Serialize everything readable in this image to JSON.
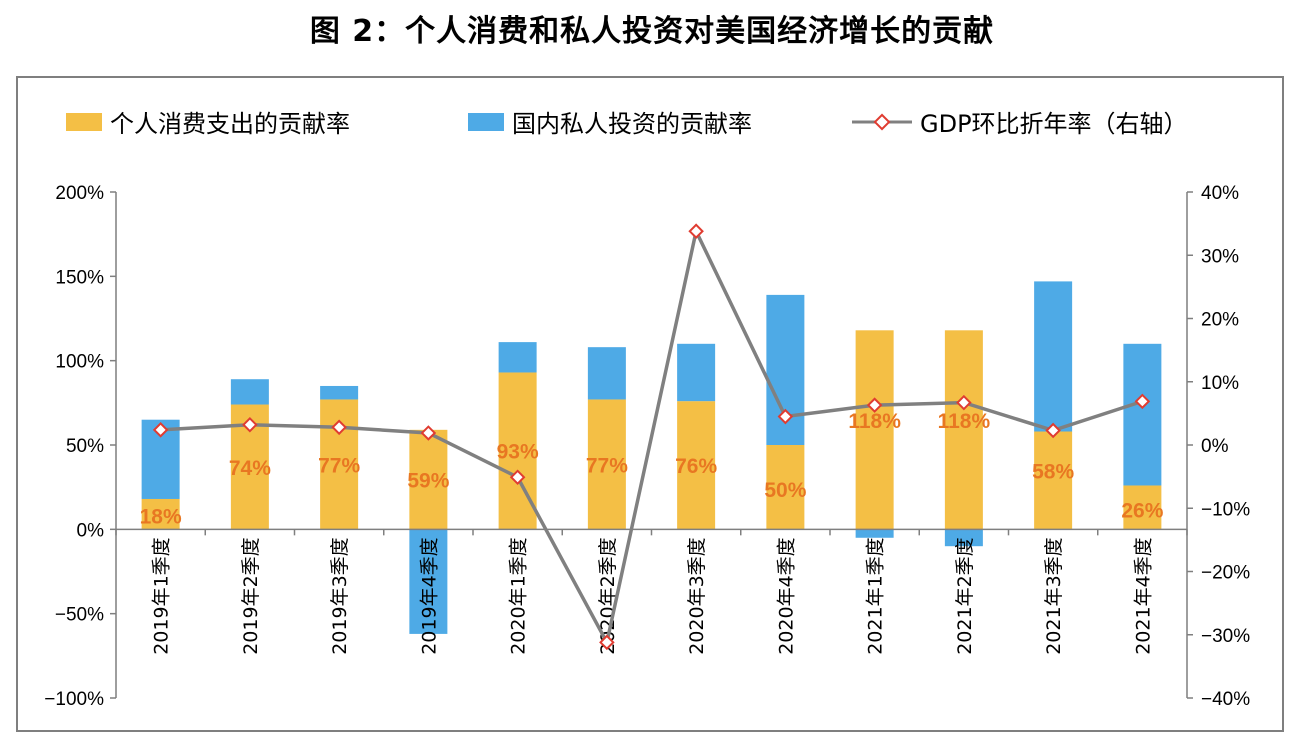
{
  "title": "图 2：个人消费和私人投资对美国经济增长的贡献",
  "colors": {
    "consumption": "#f4bf45",
    "investment": "#4eaae6",
    "gdp_line": "#808080",
    "gdp_marker": "#e03c31",
    "data_label": "#e87722"
  },
  "legend": {
    "consumption": "个人消费支出的贡献率",
    "investment": "国内私人投资的贡献率",
    "gdp": "GDP环比折年率（右轴）"
  },
  "chart_data": {
    "type": "bar",
    "title": "图 2：个人消费和私人投资对美国经济增长的贡献",
    "categories": [
      "2019年1季度",
      "2019年2季度",
      "2019年3季度",
      "2019年4季度",
      "2020年1季度",
      "2020年2季度",
      "2020年3季度",
      "2020年4季度",
      "2021年1季度",
      "2021年2季度",
      "2021年3季度",
      "2021年4季度"
    ],
    "series": [
      {
        "name": "个人消费支出的贡献率",
        "kind": "stacked-bar",
        "axis": "left",
        "values": [
          18,
          74,
          77,
          59,
          93,
          77,
          76,
          50,
          118,
          118,
          58,
          26
        ]
      },
      {
        "name": "国内私人投资的贡献率",
        "kind": "stacked-bar",
        "axis": "left",
        "values": [
          47,
          15,
          8,
          -62,
          18,
          31,
          34,
          89,
          -5,
          -10,
          89,
          84
        ]
      },
      {
        "name": "GDP环比折年率（右轴）",
        "kind": "line",
        "axis": "right",
        "values": [
          2.4,
          3.2,
          2.8,
          1.9,
          -5.1,
          -31.2,
          33.8,
          4.5,
          6.3,
          6.7,
          2.3,
          6.9
        ]
      }
    ],
    "data_labels": [
      "18%",
      "74%",
      "77%",
      "59%",
      "93%",
      "77%",
      "76%",
      "50%",
      "118%",
      "118%",
      "58%",
      "26%"
    ],
    "y_left": {
      "min": -100,
      "max": 200,
      "step": 50,
      "tick_labels": [
        "−100%",
        "−50%",
        "0%",
        "50%",
        "100%",
        "150%",
        "200%"
      ]
    },
    "y_right": {
      "min": -40,
      "max": 40,
      "step": 10,
      "tick_labels": [
        "−40%",
        "−30%",
        "−20%",
        "−10%",
        "0%",
        "10%",
        "20%",
        "30%",
        "40%"
      ]
    },
    "grid": false,
    "legend_position": "top"
  }
}
